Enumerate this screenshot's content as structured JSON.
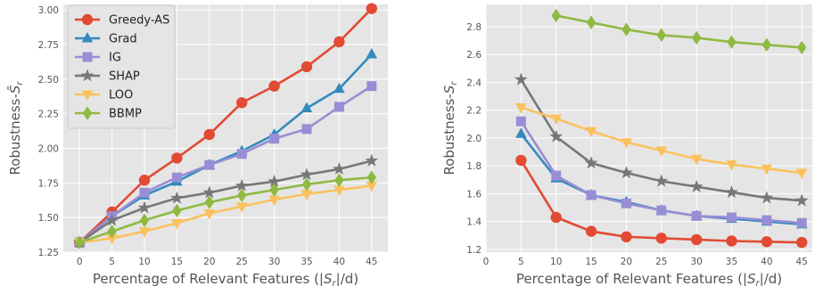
{
  "chart_data": [
    {
      "type": "line",
      "xlabel": "Percentage of Relevant Features (|S_r|/d)",
      "ylabel": "Robustness-S̄_r",
      "x": [
        0,
        5,
        10,
        15,
        20,
        25,
        30,
        35,
        40,
        45
      ],
      "xticks": [
        "0",
        "5",
        "10",
        "15",
        "20",
        "25",
        "30",
        "35",
        "40",
        "45"
      ],
      "xlim": [
        -2.5,
        47.5
      ],
      "ylim": [
        1.25,
        3.04
      ],
      "yticks": [
        "1.25",
        "1.50",
        "1.75",
        "2.00",
        "2.25",
        "2.50",
        "2.75",
        "3.00"
      ],
      "grid": true,
      "legend": "top-left",
      "series": [
        {
          "name": "Greedy-AS",
          "color": "#e24a33",
          "marker": "circle",
          "values": [
            1.32,
            1.54,
            1.77,
            1.93,
            2.1,
            2.33,
            2.45,
            2.59,
            2.77,
            3.01
          ]
        },
        {
          "name": "Grad",
          "color": "#348abd",
          "marker": "triangle",
          "values": [
            1.32,
            1.51,
            1.66,
            1.76,
            1.88,
            1.98,
            2.1,
            2.29,
            2.43,
            2.68
          ]
        },
        {
          "name": "IG",
          "color": "#988ed5",
          "marker": "square",
          "values": [
            1.32,
            1.51,
            1.68,
            1.79,
            1.88,
            1.96,
            2.07,
            2.14,
            2.3,
            2.45
          ]
        },
        {
          "name": "SHAP",
          "color": "#777777",
          "marker": "star",
          "values": [
            1.32,
            1.48,
            1.57,
            1.64,
            1.68,
            1.73,
            1.76,
            1.81,
            1.85,
            1.91
          ]
        },
        {
          "name": "LOO",
          "color": "#fbc15e",
          "marker": "tri_down",
          "values": [
            1.32,
            1.35,
            1.4,
            1.46,
            1.53,
            1.58,
            1.63,
            1.67,
            1.7,
            1.73
          ]
        },
        {
          "name": "BBMP",
          "color": "#8eba42",
          "marker": "diamond",
          "values": [
            1.32,
            1.4,
            1.48,
            1.55,
            1.61,
            1.66,
            1.7,
            1.74,
            1.77,
            1.79
          ]
        }
      ]
    },
    {
      "type": "line",
      "xlabel": "Percentage of Relevant Features (|S_r|/d)",
      "ylabel": "Robustness-S_r",
      "x": [
        0,
        5,
        10,
        15,
        20,
        25,
        30,
        35,
        40,
        45
      ],
      "xticks": [
        "0",
        "5",
        "10",
        "15",
        "20",
        "25",
        "30",
        "35",
        "40",
        "45"
      ],
      "xlim": [
        0,
        46.5
      ],
      "ylim": [
        1.18,
        2.96
      ],
      "yticks": [
        "1.2",
        "1.4",
        "1.6",
        "1.8",
        "2.0",
        "2.2",
        "2.4",
        "2.6",
        "2.8"
      ],
      "grid": true,
      "legend": "none",
      "series": [
        {
          "name": "Greedy-AS",
          "color": "#e24a33",
          "marker": "circle",
          "values": [
            null,
            1.84,
            1.43,
            1.33,
            1.29,
            1.28,
            1.27,
            1.26,
            1.255,
            1.25
          ]
        },
        {
          "name": "Grad",
          "color": "#348abd",
          "marker": "triangle",
          "values": [
            null,
            2.03,
            1.71,
            1.59,
            1.54,
            1.48,
            1.44,
            1.42,
            1.4,
            1.38
          ]
        },
        {
          "name": "IG",
          "color": "#988ed5",
          "marker": "square",
          "values": [
            null,
            2.12,
            1.73,
            1.59,
            1.53,
            1.48,
            1.44,
            1.43,
            1.41,
            1.39
          ]
        },
        {
          "name": "SHAP",
          "color": "#777777",
          "marker": "star",
          "values": [
            null,
            2.42,
            2.01,
            1.82,
            1.75,
            1.69,
            1.65,
            1.61,
            1.57,
            1.55
          ]
        },
        {
          "name": "LOO",
          "color": "#fbc15e",
          "marker": "tri_down",
          "values": [
            null,
            2.22,
            2.14,
            2.05,
            1.97,
            1.91,
            1.85,
            1.81,
            1.78,
            1.75
          ]
        },
        {
          "name": "BBMP",
          "color": "#8eba42",
          "marker": "diamond",
          "values": [
            null,
            null,
            2.88,
            2.83,
            2.78,
            2.74,
            2.72,
            2.69,
            2.67,
            2.65
          ]
        }
      ]
    }
  ]
}
